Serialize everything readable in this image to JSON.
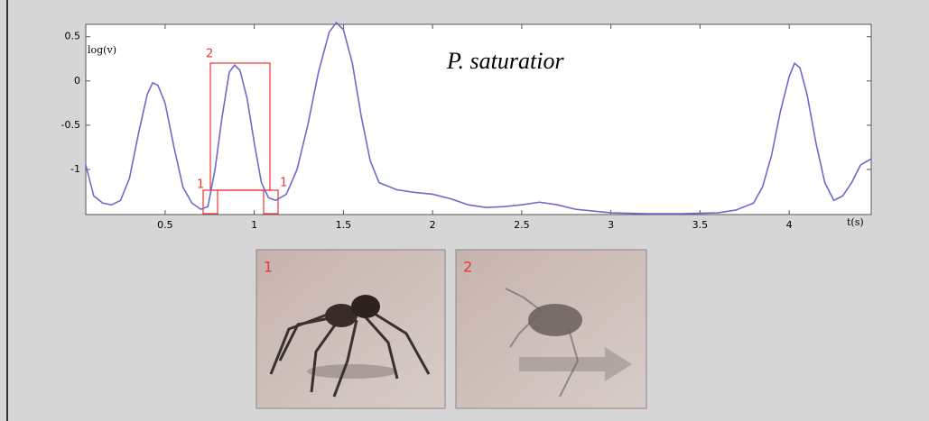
{
  "chart_data": {
    "type": "line",
    "x_label": "t(s)",
    "y_label": "log(v)",
    "annotation": "P. saturatior",
    "box_labels": [
      "1",
      "2",
      "1"
    ],
    "photo_labels": [
      "1",
      "2"
    ],
    "xlim": [
      0.055,
      4.46
    ],
    "ylim": [
      -1.51,
      0.64
    ],
    "xticks": [
      0.5,
      1,
      1.5,
      2,
      2.5,
      3,
      3.5,
      4
    ],
    "yticks": [
      0.5,
      0,
      -0.5,
      -1
    ],
    "series": [
      {
        "color": "#6b6bcc",
        "x": [
          0.055,
          0.1,
          0.15,
          0.2,
          0.25,
          0.3,
          0.35,
          0.4,
          0.43,
          0.46,
          0.5,
          0.55,
          0.6,
          0.65,
          0.7,
          0.74,
          0.78,
          0.82,
          0.86,
          0.89,
          0.92,
          0.96,
          1.0,
          1.04,
          1.08,
          1.12,
          1.18,
          1.24,
          1.3,
          1.36,
          1.42,
          1.46,
          1.5,
          1.55,
          1.6,
          1.65,
          1.7,
          1.8,
          1.9,
          2.0,
          2.1,
          2.2,
          2.3,
          2.4,
          2.5,
          2.6,
          2.7,
          2.8,
          2.9,
          3.0,
          3.2,
          3.4,
          3.6,
          3.7,
          3.8,
          3.85,
          3.9,
          3.95,
          4.0,
          4.03,
          4.06,
          4.1,
          4.15,
          4.2,
          4.25,
          4.3,
          4.35,
          4.4,
          4.46
        ],
        "values": [
          -0.95,
          -1.3,
          -1.38,
          -1.4,
          -1.35,
          -1.1,
          -0.6,
          -0.15,
          -0.02,
          -0.05,
          -0.25,
          -0.75,
          -1.2,
          -1.38,
          -1.45,
          -1.42,
          -1.0,
          -0.4,
          0.1,
          0.18,
          0.12,
          -0.2,
          -0.7,
          -1.15,
          -1.32,
          -1.35,
          -1.28,
          -1.0,
          -0.5,
          0.1,
          0.55,
          0.66,
          0.58,
          0.2,
          -0.4,
          -0.9,
          -1.15,
          -1.23,
          -1.26,
          -1.28,
          -1.33,
          -1.4,
          -1.43,
          -1.42,
          -1.4,
          -1.37,
          -1.4,
          -1.45,
          -1.47,
          -1.49,
          -1.5,
          -1.5,
          -1.49,
          -1.46,
          -1.38,
          -1.2,
          -0.85,
          -0.35,
          0.05,
          0.2,
          0.15,
          -0.15,
          -0.7,
          -1.15,
          -1.35,
          -1.3,
          -1.15,
          -0.95,
          -0.88
        ]
      }
    ]
  }
}
